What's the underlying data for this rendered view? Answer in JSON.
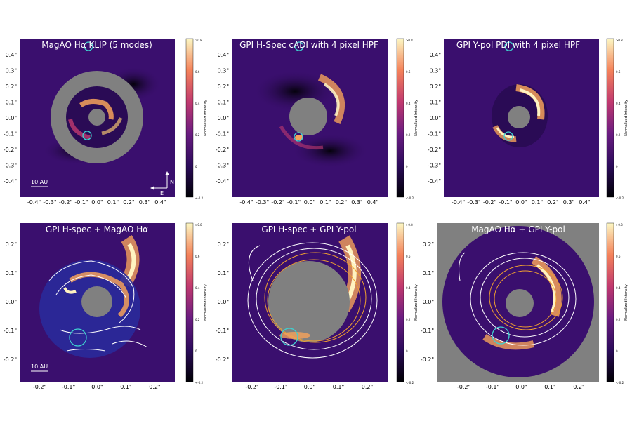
{
  "figure": {
    "panels": [
      {
        "id": "p1",
        "title": "MagAO Hα KLIP (5 modes)"
      },
      {
        "id": "p2",
        "title": "GPI H-Spec cADI with 4 pixel HPF"
      },
      {
        "id": "p3",
        "title": "GPI Y-pol PDI with 4 pixel HPF"
      },
      {
        "id": "p4",
        "title": "GPI H-spec + MagAO Hα"
      },
      {
        "id": "p5",
        "title": "GPI H-spec + GPI Y-pol"
      },
      {
        "id": "p6",
        "title": "MagAO Hα + GPI Y-pol"
      }
    ],
    "top_y_ticks": [
      "0.4\"",
      "0.3\"",
      "0.2\"",
      "0.1\"",
      "0.0\"",
      "-0.1\"",
      "-0.2\"",
      "-0.3\"",
      "-0.4\""
    ],
    "top_x_ticks": [
      "-0.4\"",
      "-0.3\"",
      "-0.2\"",
      "-0.1\"",
      "0.0\"",
      "0.1\"",
      "0.2\"",
      "0.3\"",
      "0.4\""
    ],
    "bottom_y_ticks": [
      "0.2\"",
      "0.1\"",
      "0.0\"",
      "-0.1\"",
      "-0.2\""
    ],
    "bottom_x_ticks": [
      "-0.2\"",
      "-0.1\"",
      "0.0\"",
      "0.1\"",
      "0.2\""
    ],
    "colorbar": {
      "label": "Normalized Intensity",
      "ticks": [
        ">0.8",
        "0.6",
        "0.4",
        "0.2",
        "0",
        "<-0.2"
      ]
    },
    "scale_bar": "10 AU",
    "compass": {
      "north": "N",
      "east": "E"
    },
    "colors": {
      "background": "#3a0f6e",
      "mask": "#808080",
      "marker": "#3fd0d0",
      "contour_white": "#ffffff",
      "contour_orange": "#f0a030"
    }
  }
}
